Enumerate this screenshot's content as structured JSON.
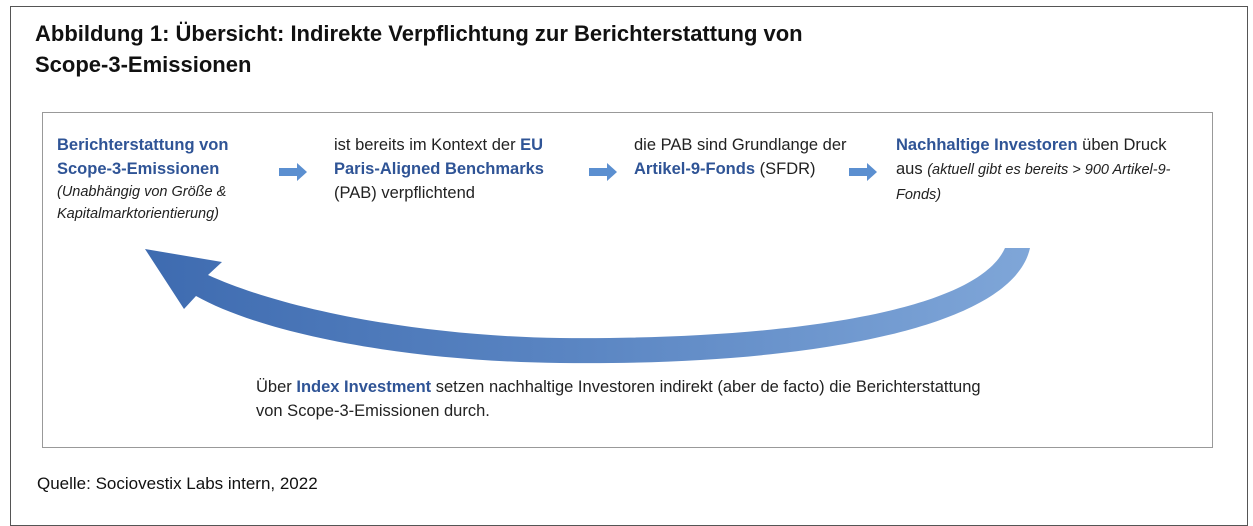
{
  "title": [
    "Abbildung 1: Übersicht:  Indirekte Verpflichtung zur Berichterstattung von",
    "Scope-3-Emissionen"
  ],
  "steps": [
    {
      "segments": [
        "Berichterstattung von Scope-3-Emissionen",
        "(Unabhängig von Größe & Kapitalmarktorientierung)"
      ]
    },
    {
      "segments": [
        "ist bereits im Kontext der",
        "EU Paris-Aligned Benchmarks",
        "(PAB) verpflichtend"
      ]
    },
    {
      "segments": [
        "die PAB sind Grundlange der",
        "Artikel-9-Fonds",
        "(SFDR)"
      ]
    },
    {
      "segments": [
        "Nachhaltige Investoren",
        "üben Druck aus",
        "(aktuell gibt es bereits > 900 Artikel-9-Fonds)"
      ]
    }
  ],
  "summary": {
    "segments": [
      "Über",
      "Index Investment",
      "setzen nachhaltige Investoren indirekt (aber de facto) die Berichterstattung von Scope-3-Emissionen durch."
    ]
  },
  "source": "Quelle: Sociovestix Labs intern, 2022"
}
